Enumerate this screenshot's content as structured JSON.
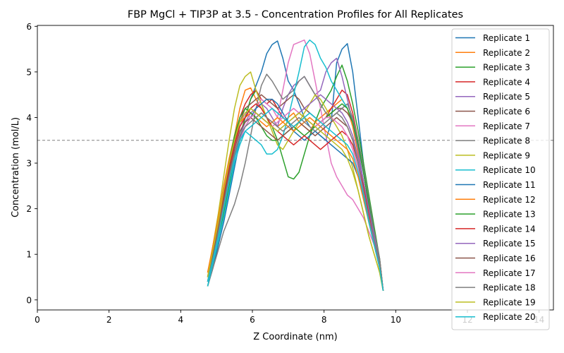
{
  "chart_data": {
    "type": "line",
    "title": "FBP MgCl + TIP3P at 3.5 - Concentration Profiles for All Replicates",
    "xlabel": "Z Coordinate (nm)",
    "ylabel": "Concentration (mol/L)",
    "xlim": [
      0,
      14.4
    ],
    "ylim": [
      -0.22,
      6.02
    ],
    "xticks": [
      0,
      2,
      4,
      6,
      8,
      10,
      12,
      14
    ],
    "xtick_labels": [
      "0",
      "2",
      "4",
      "6",
      "8",
      "10",
      "12",
      "14"
    ],
    "yticks": [
      0,
      1,
      2,
      3,
      4,
      5,
      6
    ],
    "ytick_labels": [
      "0",
      "1",
      "2",
      "3",
      "4",
      "5",
      "6"
    ],
    "grid": false,
    "legend_position": "top-right",
    "reference_line": {
      "y": 3.5,
      "style": "dashed",
      "color": "#808080"
    },
    "x": [
      4.75,
      4.9,
      5.05,
      5.2,
      5.35,
      5.5,
      5.65,
      5.8,
      5.95,
      6.1,
      6.25,
      6.4,
      6.55,
      6.7,
      6.85,
      7.0,
      7.15,
      7.3,
      7.45,
      7.6,
      7.75,
      7.9,
      8.05,
      8.2,
      8.35,
      8.5,
      8.65,
      8.8,
      8.95,
      9.1,
      9.25,
      9.4,
      9.55,
      9.65
    ],
    "series": [
      {
        "name": "Replicate 1",
        "color": "#1f77b4",
        "values": [
          0.3,
          0.7,
          1.2,
          1.7,
          2.3,
          2.9,
          3.5,
          4.0,
          4.4,
          4.7,
          5.0,
          5.4,
          5.6,
          5.68,
          5.3,
          4.8,
          4.6,
          4.3,
          4.0,
          3.8,
          3.7,
          3.6,
          3.5,
          3.9,
          5.2,
          5.5,
          5.62,
          5.0,
          4.0,
          3.0,
          2.2,
          1.5,
          0.9,
          0.2
        ]
      },
      {
        "name": "Replicate 2",
        "color": "#ff7f0e",
        "values": [
          0.5,
          1.0,
          1.6,
          2.3,
          3.0,
          3.6,
          4.2,
          4.6,
          4.65,
          4.4,
          4.2,
          4.0,
          3.9,
          3.8,
          3.9,
          4.0,
          4.1,
          3.9,
          3.8,
          3.7,
          3.9,
          4.0,
          4.1,
          4.2,
          4.3,
          4.4,
          4.2,
          3.8,
          3.2,
          2.6,
          2.0,
          1.4,
          0.8,
          0.2
        ]
      },
      {
        "name": "Replicate 3",
        "color": "#2ca02c",
        "values": [
          0.3,
          0.8,
          1.3,
          1.9,
          2.5,
          3.1,
          3.6,
          4.0,
          4.4,
          4.6,
          4.3,
          4.0,
          3.8,
          3.5,
          3.1,
          2.7,
          2.65,
          2.8,
          3.2,
          3.6,
          3.9,
          4.2,
          4.4,
          4.6,
          4.9,
          5.15,
          4.8,
          4.3,
          3.7,
          3.0,
          2.3,
          1.6,
          0.9,
          0.2
        ]
      },
      {
        "name": "Replicate 4",
        "color": "#d62728",
        "values": [
          0.6,
          1.1,
          1.7,
          2.3,
          2.9,
          3.5,
          4.0,
          4.3,
          4.5,
          4.6,
          4.4,
          4.3,
          4.4,
          4.2,
          4.0,
          3.9,
          3.8,
          3.9,
          4.0,
          3.9,
          3.8,
          3.9,
          4.0,
          4.2,
          4.4,
          4.6,
          4.5,
          4.1,
          3.5,
          2.8,
          2.1,
          1.4,
          0.8,
          0.2
        ]
      },
      {
        "name": "Replicate 5",
        "color": "#9467bd",
        "values": [
          0.4,
          0.9,
          1.5,
          2.1,
          2.7,
          3.2,
          3.6,
          3.9,
          4.1,
          4.2,
          4.3,
          4.2,
          4.0,
          3.8,
          4.2,
          4.5,
          4.7,
          4.8,
          4.9,
          4.7,
          4.5,
          4.6,
          5.0,
          5.2,
          5.3,
          4.9,
          4.4,
          3.9,
          3.3,
          2.6,
          1.9,
          1.3,
          0.7,
          0.2
        ]
      },
      {
        "name": "Replicate 6",
        "color": "#8c564b",
        "values": [
          0.5,
          1.0,
          1.6,
          2.2,
          2.9,
          3.4,
          3.9,
          4.2,
          4.3,
          4.4,
          4.5,
          4.4,
          4.3,
          4.2,
          4.3,
          4.4,
          4.5,
          4.4,
          4.2,
          4.1,
          4.0,
          3.9,
          4.0,
          4.1,
          4.2,
          4.2,
          4.1,
          3.9,
          3.4,
          2.8,
          2.1,
          1.5,
          0.9,
          0.2
        ]
      },
      {
        "name": "Replicate 7",
        "color": "#e377c2",
        "values": [
          0.4,
          0.9,
          1.5,
          2.1,
          2.7,
          3.3,
          3.8,
          4.1,
          4.0,
          4.2,
          4.4,
          4.3,
          4.2,
          4.0,
          4.6,
          5.2,
          5.6,
          5.65,
          5.7,
          5.4,
          4.8,
          4.2,
          3.6,
          3.0,
          2.7,
          2.5,
          2.3,
          2.2,
          2.0,
          1.8,
          1.5,
          1.2,
          0.7,
          0.2
        ]
      },
      {
        "name": "Replicate 8",
        "color": "#7f7f7f",
        "values": [
          0.3,
          0.7,
          1.1,
          1.5,
          1.8,
          2.1,
          2.5,
          3.0,
          3.6,
          4.2,
          4.7,
          4.95,
          4.8,
          4.6,
          4.4,
          4.5,
          4.6,
          4.8,
          4.9,
          4.7,
          4.5,
          4.3,
          4.1,
          4.0,
          4.1,
          4.2,
          4.3,
          4.0,
          3.5,
          2.9,
          2.2,
          1.5,
          0.9,
          0.2
        ]
      },
      {
        "name": "Replicate 9",
        "color": "#bcbd22",
        "values": [
          0.5,
          1.2,
          1.9,
          2.7,
          3.5,
          4.2,
          4.7,
          4.9,
          5.0,
          4.6,
          4.3,
          4.0,
          3.7,
          3.4,
          3.3,
          3.5,
          3.7,
          3.9,
          4.1,
          4.3,
          4.5,
          4.4,
          4.2,
          4.0,
          3.8,
          3.6,
          3.3,
          2.9,
          2.4,
          1.9,
          1.4,
          1.0,
          0.6,
          0.2
        ]
      },
      {
        "name": "Replicate 10",
        "color": "#17becf",
        "values": [
          0.3,
          0.8,
          1.3,
          1.8,
          2.4,
          3.0,
          3.4,
          3.7,
          3.6,
          3.5,
          3.4,
          3.2,
          3.2,
          3.3,
          3.6,
          4.0,
          4.5,
          5.0,
          5.55,
          5.7,
          5.6,
          5.3,
          5.1,
          4.8,
          4.6,
          4.4,
          4.2,
          3.9,
          3.4,
          2.8,
          2.1,
          1.4,
          0.8,
          0.2
        ]
      },
      {
        "name": "Replicate 11",
        "color": "#1f77b4",
        "values": [
          0.4,
          0.9,
          1.4,
          2.0,
          2.6,
          3.1,
          3.5,
          3.8,
          4.0,
          4.2,
          4.3,
          4.4,
          4.4,
          4.3,
          4.1,
          3.9,
          3.7,
          3.6,
          3.5,
          3.6,
          3.7,
          3.6,
          3.5,
          3.4,
          3.3,
          3.2,
          3.1,
          3.0,
          2.7,
          2.3,
          1.8,
          1.3,
          0.7,
          0.2
        ]
      },
      {
        "name": "Replicate 12",
        "color": "#ff7f0e",
        "values": [
          0.6,
          1.2,
          1.8,
          2.5,
          3.1,
          3.6,
          3.9,
          4.0,
          4.1,
          4.0,
          3.9,
          3.8,
          3.9,
          4.0,
          3.9,
          3.8,
          3.7,
          3.8,
          3.9,
          4.0,
          3.9,
          3.8,
          3.7,
          3.6,
          3.5,
          3.4,
          3.3,
          3.1,
          2.7,
          2.2,
          1.7,
          1.2,
          0.7,
          0.2
        ]
      },
      {
        "name": "Replicate 13",
        "color": "#2ca02c",
        "values": [
          0.4,
          1.0,
          1.6,
          2.3,
          3.0,
          3.6,
          4.0,
          4.2,
          4.1,
          4.0,
          3.8,
          3.6,
          3.5,
          3.5,
          3.6,
          3.7,
          3.8,
          3.7,
          3.6,
          3.7,
          3.8,
          3.9,
          4.0,
          4.1,
          4.2,
          4.3,
          4.2,
          3.9,
          3.4,
          2.8,
          2.1,
          1.4,
          0.8,
          0.2
        ]
      },
      {
        "name": "Replicate 14",
        "color": "#d62728",
        "values": [
          0.5,
          1.0,
          1.6,
          2.3,
          2.9,
          3.4,
          3.8,
          4.0,
          4.2,
          4.3,
          4.2,
          4.0,
          3.8,
          3.7,
          3.6,
          3.5,
          3.4,
          3.5,
          3.6,
          3.5,
          3.4,
          3.3,
          3.4,
          3.5,
          3.6,
          3.7,
          3.6,
          3.4,
          3.0,
          2.5,
          1.9,
          1.3,
          0.7,
          0.2
        ]
      },
      {
        "name": "Replicate 15",
        "color": "#9467bd",
        "values": [
          0.4,
          0.9,
          1.5,
          2.1,
          2.7,
          3.2,
          3.6,
          3.9,
          4.0,
          4.1,
          4.0,
          3.9,
          3.8,
          3.7,
          3.8,
          3.9,
          4.0,
          4.1,
          4.2,
          4.3,
          4.4,
          4.5,
          4.4,
          4.3,
          4.2,
          4.1,
          3.9,
          3.6,
          3.1,
          2.6,
          2.0,
          1.4,
          0.8,
          0.2
        ]
      },
      {
        "name": "Replicate 16",
        "color": "#8c564b",
        "values": [
          0.5,
          1.0,
          1.6,
          2.2,
          2.8,
          3.3,
          3.7,
          3.9,
          4.0,
          3.9,
          3.8,
          3.7,
          3.6,
          3.5,
          3.6,
          3.7,
          3.8,
          3.9,
          3.8,
          3.7,
          3.6,
          3.7,
          3.8,
          3.9,
          4.0,
          3.9,
          3.8,
          3.5,
          3.0,
          2.4,
          1.8,
          1.3,
          0.8,
          0.2
        ]
      },
      {
        "name": "Replicate 17",
        "color": "#e377c2",
        "values": [
          0.4,
          0.9,
          1.4,
          2.0,
          2.6,
          3.1,
          3.5,
          3.8,
          4.0,
          4.1,
          4.0,
          3.9,
          3.8,
          3.9,
          4.0,
          4.1,
          4.2,
          4.1,
          4.0,
          3.9,
          3.8,
          3.9,
          4.0,
          4.0,
          3.9,
          3.8,
          3.6,
          3.3,
          2.9,
          2.4,
          1.8,
          1.2,
          0.7,
          0.2
        ]
      },
      {
        "name": "Replicate 18",
        "color": "#7f7f7f",
        "values": [
          0.4,
          0.9,
          1.5,
          2.1,
          2.7,
          3.2,
          3.6,
          3.8,
          3.9,
          4.0,
          4.1,
          4.0,
          3.9,
          3.8,
          3.7,
          3.8,
          3.9,
          4.0,
          3.9,
          3.8,
          3.7,
          3.8,
          3.9,
          4.0,
          4.1,
          4.0,
          3.8,
          3.5,
          3.0,
          2.4,
          1.8,
          1.3,
          0.8,
          0.2
        ]
      },
      {
        "name": "Replicate 19",
        "color": "#bcbd22",
        "values": [
          0.5,
          1.1,
          1.7,
          2.4,
          3.0,
          3.5,
          3.9,
          4.1,
          4.2,
          4.1,
          4.0,
          3.9,
          3.8,
          3.7,
          3.8,
          3.9,
          4.0,
          4.1,
          4.0,
          3.9,
          3.8,
          3.7,
          3.6,
          3.5,
          3.4,
          3.3,
          3.1,
          2.8,
          2.4,
          1.9,
          1.4,
          1.0,
          0.6,
          0.2
        ]
      },
      {
        "name": "Replicate 20",
        "color": "#17becf",
        "values": [
          0.4,
          0.9,
          1.4,
          2.0,
          2.6,
          3.1,
          3.5,
          3.7,
          3.8,
          3.9,
          4.0,
          4.1,
          4.2,
          4.1,
          4.0,
          3.9,
          3.8,
          3.9,
          4.0,
          4.1,
          4.0,
          3.9,
          3.8,
          3.7,
          3.6,
          3.5,
          3.4,
          3.2,
          2.8,
          2.3,
          1.7,
          1.2,
          0.7,
          0.2
        ]
      }
    ]
  }
}
